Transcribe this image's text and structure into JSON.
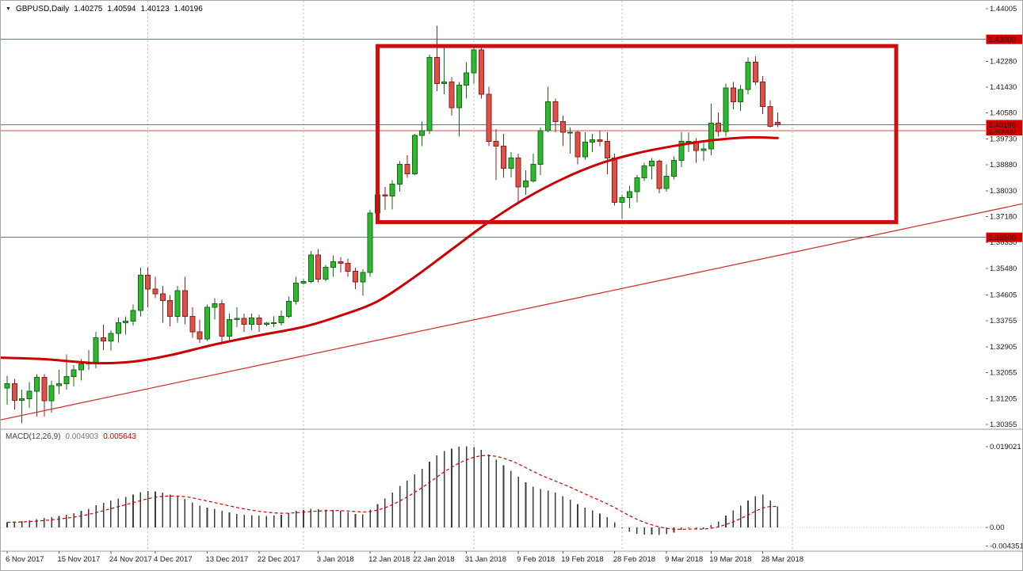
{
  "header": {
    "symbol": "GBPUSD,Daily",
    "open": "1.40275",
    "high": "1.40594",
    "low": "1.40123",
    "close": "1.40196"
  },
  "macd_panel": {
    "label": "MACD(12,26,9)",
    "main_value": "0.004903",
    "signal_value": "0.005643"
  },
  "colors": {
    "bull_fill": "#2eb82e",
    "bull_border": "#156915",
    "bear_fill": "#dd5246",
    "bear_border": "#8f1f1f",
    "level_line_red": "#e04848",
    "object_red": "#cc0f0f",
    "ma_red": "#cc0000",
    "badge_red": "#d40000",
    "histogram": "#3d3d3d",
    "grid_gray": "#b5b5b5",
    "separator_gray": "#9a9a9a"
  },
  "chart_data": {
    "type": "candlestick",
    "symbol": "GBPUSD",
    "timeframe": "Daily",
    "price_axis": {
      "labels": [
        "1.44005",
        "1.42280",
        "1.41430",
        "1.40580",
        "1.39730",
        "1.38880",
        "1.38030",
        "1.37180",
        "1.36330",
        "1.35480",
        "1.34605",
        "1.33755",
        "1.32905",
        "1.32055",
        "1.31205",
        "1.30355"
      ],
      "ylim": [
        1.30355,
        1.44005
      ]
    },
    "time_axis": [
      {
        "i": 0,
        "label": "6 Nov 2017"
      },
      {
        "i": 7,
        "label": "15 Nov 2017"
      },
      {
        "i": 14,
        "label": "24 Nov 2017"
      },
      {
        "i": 20,
        "label": "4 Dec 2017"
      },
      {
        "i": 27,
        "label": "13 Dec 2017"
      },
      {
        "i": 34,
        "label": "22 Dec 2017"
      },
      {
        "i": 42,
        "label": "3 Jan 2018"
      },
      {
        "i": 49,
        "label": "12 Jan 2018"
      },
      {
        "i": 55,
        "label": "22 Jan 2018"
      },
      {
        "i": 62,
        "label": "31 Jan 2018"
      },
      {
        "i": 69,
        "label": "9 Feb 2018"
      },
      {
        "i": 75,
        "label": "19 Feb 2018"
      },
      {
        "i": 82,
        "label": "28 Feb 2018"
      },
      {
        "i": 89,
        "label": "9 Mar 2018"
      },
      {
        "i": 95,
        "label": "19 Mar 2018"
      },
      {
        "i": 102,
        "label": "28 Mar 2018"
      }
    ],
    "month_separator_indices": [
      19,
      40,
      63,
      83,
      106
    ],
    "hlines": [
      {
        "price": 1.43,
        "label": "1.43000"
      },
      {
        "price": 1.4,
        "label": "1.40000"
      },
      {
        "price": 1.365,
        "label": "1.36500"
      }
    ],
    "current_price": {
      "price": 1.40196,
      "label": "1.40196"
    },
    "trendline": {
      "i1": -1,
      "p1": 1.305,
      "i2": 138,
      "p2": 1.3765
    },
    "rectangle": {
      "i1": 50,
      "p1": 1.4278,
      "i2": 120,
      "p2": 1.37
    },
    "ma_points": [
      [
        -1,
        1.3255
      ],
      [
        5,
        1.325
      ],
      [
        12,
        1.3237
      ],
      [
        17,
        1.3242
      ],
      [
        22,
        1.3263
      ],
      [
        28,
        1.3298
      ],
      [
        34,
        1.3328
      ],
      [
        40,
        1.3356
      ],
      [
        45,
        1.3393
      ],
      [
        50,
        1.344
      ],
      [
        55,
        1.352
      ],
      [
        60,
        1.361
      ],
      [
        65,
        1.37
      ],
      [
        70,
        1.3778
      ],
      [
        75,
        1.3842
      ],
      [
        80,
        1.3892
      ],
      [
        85,
        1.3926
      ],
      [
        90,
        1.395
      ],
      [
        95,
        1.3968
      ],
      [
        100,
        1.3978
      ],
      [
        104,
        1.3976
      ]
    ],
    "candles": [
      [
        1.3155,
        1.3195,
        1.31,
        1.317
      ],
      [
        1.317,
        1.3185,
        1.3085,
        1.3115
      ],
      [
        1.3115,
        1.315,
        1.304,
        1.312
      ],
      [
        1.312,
        1.3175,
        1.309,
        1.3145
      ],
      [
        1.3145,
        1.32,
        1.3062,
        1.319
      ],
      [
        1.319,
        1.32,
        1.3062,
        1.3113
      ],
      [
        1.3113,
        1.318,
        1.3075,
        1.3163
      ],
      [
        1.3163,
        1.3215,
        1.3135,
        1.317
      ],
      [
        1.317,
        1.3265,
        1.315,
        1.3193
      ],
      [
        1.3193,
        1.323,
        1.316,
        1.3215
      ],
      [
        1.3215,
        1.325,
        1.318,
        1.3235
      ],
      [
        1.3235,
        1.328,
        1.3215,
        1.324
      ],
      [
        1.324,
        1.334,
        1.322,
        1.332
      ],
      [
        1.332,
        1.3363,
        1.328,
        1.331
      ],
      [
        1.331,
        1.3345,
        1.3278,
        1.3335
      ],
      [
        1.3335,
        1.3387,
        1.3305,
        1.337
      ],
      [
        1.337,
        1.339,
        1.333,
        1.3375
      ],
      [
        1.3375,
        1.343,
        1.336,
        1.341
      ],
      [
        1.341,
        1.355,
        1.339,
        1.3525
      ],
      [
        1.3525,
        1.355,
        1.342,
        1.348
      ],
      [
        1.348,
        1.352,
        1.345,
        1.3465
      ],
      [
        1.3465,
        1.349,
        1.337,
        1.3442
      ],
      [
        1.3442,
        1.346,
        1.3358,
        1.339
      ],
      [
        1.339,
        1.349,
        1.337,
        1.3475
      ],
      [
        1.3475,
        1.352,
        1.3365,
        1.339
      ],
      [
        1.339,
        1.342,
        1.332,
        1.334
      ],
      [
        1.334,
        1.338,
        1.3303,
        1.3316
      ],
      [
        1.3316,
        1.343,
        1.331,
        1.342
      ],
      [
        1.342,
        1.345,
        1.338,
        1.3432
      ],
      [
        1.3432,
        1.3445,
        1.3305,
        1.3325
      ],
      [
        1.3325,
        1.34,
        1.331,
        1.338
      ],
      [
        1.338,
        1.342,
        1.3355,
        1.3384
      ],
      [
        1.3384,
        1.34,
        1.334,
        1.3365
      ],
      [
        1.3365,
        1.34,
        1.3345,
        1.3385
      ],
      [
        1.3385,
        1.3395,
        1.334,
        1.3365
      ],
      [
        1.3365,
        1.3372,
        1.3358,
        1.3368
      ],
      [
        1.3368,
        1.339,
        1.3355,
        1.337
      ],
      [
        1.337,
        1.341,
        1.336,
        1.339
      ],
      [
        1.339,
        1.3455,
        1.3385,
        1.344
      ],
      [
        1.344,
        1.352,
        1.343,
        1.35
      ],
      [
        1.35,
        1.3512,
        1.3494,
        1.3505
      ],
      [
        1.3505,
        1.3605,
        1.35,
        1.3592
      ],
      [
        1.3592,
        1.3612,
        1.3502,
        1.3513
      ],
      [
        1.3513,
        1.356,
        1.3505,
        1.3552
      ],
      [
        1.3552,
        1.359,
        1.352,
        1.357
      ],
      [
        1.357,
        1.3585,
        1.3535,
        1.3565
      ],
      [
        1.3565,
        1.358,
        1.352,
        1.3538
      ],
      [
        1.3538,
        1.355,
        1.348,
        1.3503
      ],
      [
        1.3503,
        1.3545,
        1.3458,
        1.3535
      ],
      [
        1.3535,
        1.374,
        1.352,
        1.373
      ],
      [
        1.373,
        1.382,
        1.37,
        1.379
      ],
      [
        1.379,
        1.3815,
        1.374,
        1.3785
      ],
      [
        1.3785,
        1.3837,
        1.3742,
        1.3825
      ],
      [
        1.3825,
        1.39,
        1.38,
        1.389
      ],
      [
        1.389,
        1.392,
        1.3845,
        1.3858
      ],
      [
        1.3858,
        1.399,
        1.3855,
        1.3985
      ],
      [
        1.3985,
        1.403,
        1.395,
        1.4
      ],
      [
        1.4,
        1.425,
        1.399,
        1.424
      ],
      [
        1.424,
        1.4345,
        1.413,
        1.4155
      ],
      [
        1.4155,
        1.428,
        1.412,
        1.416
      ],
      [
        1.416,
        1.4175,
        1.405,
        1.4075
      ],
      [
        1.4075,
        1.416,
        1.398,
        1.415
      ],
      [
        1.415,
        1.4225,
        1.4105,
        1.419
      ],
      [
        1.419,
        1.428,
        1.4155,
        1.4265
      ],
      [
        1.4265,
        1.428,
        1.4105,
        1.412
      ],
      [
        1.412,
        1.4145,
        1.395,
        1.3965
      ],
      [
        1.3965,
        1.4005,
        1.3838,
        1.395
      ],
      [
        1.395,
        1.399,
        1.3845,
        1.3876
      ],
      [
        1.3876,
        1.393,
        1.3847,
        1.391
      ],
      [
        1.391,
        1.3925,
        1.3765,
        1.3815
      ],
      [
        1.3815,
        1.387,
        1.379,
        1.3835
      ],
      [
        1.3835,
        1.3925,
        1.383,
        1.389
      ],
      [
        1.389,
        1.401,
        1.3855,
        1.4
      ],
      [
        1.4,
        1.4145,
        1.3995,
        1.4095
      ],
      [
        1.4095,
        1.4105,
        1.3995,
        1.403
      ],
      [
        1.403,
        1.405,
        1.395,
        1.3995
      ],
      [
        1.3995,
        1.401,
        1.3925,
        1.3995
      ],
      [
        1.3995,
        1.4,
        1.389,
        1.3914
      ],
      [
        1.3914,
        1.3995,
        1.3905,
        1.3962
      ],
      [
        1.3962,
        1.399,
        1.393,
        1.397
      ],
      [
        1.397,
        1.4,
        1.395,
        1.3965
      ],
      [
        1.3965,
        1.3995,
        1.3857,
        1.391
      ],
      [
        1.391,
        1.3925,
        1.3755,
        1.3765
      ],
      [
        1.3765,
        1.379,
        1.3712,
        1.378
      ],
      [
        1.378,
        1.382,
        1.3745,
        1.38
      ],
      [
        1.38,
        1.3855,
        1.3765,
        1.3845
      ],
      [
        1.3845,
        1.3895,
        1.3835,
        1.3885
      ],
      [
        1.3885,
        1.391,
        1.384,
        1.39
      ],
      [
        1.39,
        1.3905,
        1.3795,
        1.381
      ],
      [
        1.381,
        1.389,
        1.38,
        1.385
      ],
      [
        1.385,
        1.3915,
        1.384,
        1.3903
      ],
      [
        1.3903,
        1.3996,
        1.388,
        1.3965
      ],
      [
        1.3965,
        1.3995,
        1.393,
        1.3965
      ],
      [
        1.3965,
        1.3975,
        1.3895,
        1.3935
      ],
      [
        1.3935,
        1.396,
        1.39,
        1.394
      ],
      [
        1.394,
        1.4088,
        1.392,
        1.4025
      ],
      [
        1.4025,
        1.406,
        1.398,
        1.3998
      ],
      [
        1.3998,
        1.4155,
        1.398,
        1.414
      ],
      [
        1.414,
        1.416,
        1.407,
        1.4095
      ],
      [
        1.4095,
        1.415,
        1.4065,
        1.4135
      ],
      [
        1.4135,
        1.424,
        1.412,
        1.4225
      ],
      [
        1.4225,
        1.4244,
        1.415,
        1.416
      ],
      [
        1.416,
        1.418,
        1.4055,
        1.408
      ],
      [
        1.408,
        1.41,
        1.401,
        1.4015
      ],
      [
        1.40275,
        1.40594,
        1.40123,
        1.40196
      ]
    ],
    "macd": {
      "type": "bar",
      "signal_period": 9,
      "values": [
        0.0012,
        0.0014,
        0.0015,
        0.0017,
        0.002,
        0.0022,
        0.0024,
        0.0027,
        0.003,
        0.0034,
        0.0039,
        0.0044,
        0.0052,
        0.0058,
        0.0063,
        0.0068,
        0.0072,
        0.0077,
        0.0083,
        0.0086,
        0.0085,
        0.0082,
        0.0077,
        0.0073,
        0.0067,
        0.0059,
        0.0051,
        0.0047,
        0.0044,
        0.0039,
        0.0035,
        0.0032,
        0.003,
        0.0029,
        0.0028,
        0.0027,
        0.0028,
        0.003,
        0.0034,
        0.0039,
        0.0041,
        0.0044,
        0.0043,
        0.0042,
        0.0041,
        0.0039,
        0.0036,
        0.0032,
        0.0031,
        0.0042,
        0.0055,
        0.0068,
        0.0082,
        0.0098,
        0.011,
        0.0125,
        0.0138,
        0.0155,
        0.017,
        0.018,
        0.0186,
        0.019,
        0.0191,
        0.0189,
        0.0183,
        0.0172,
        0.0159,
        0.0146,
        0.0133,
        0.0119,
        0.0106,
        0.0096,
        0.009,
        0.0087,
        0.0082,
        0.0074,
        0.0065,
        0.0055,
        0.0047,
        0.004,
        0.0033,
        0.0024,
        0.0012,
        -0.0002,
        -0.001,
        -0.0015,
        -0.0017,
        -0.0017,
        -0.0018,
        -0.0016,
        -0.0012,
        -0.0006,
        -0.0002,
        -0.0003,
        -0.0004,
        0.0006,
        0.0014,
        0.0028,
        0.004,
        0.0051,
        0.0063,
        0.0074,
        0.0077,
        0.0063,
        0.0049
      ],
      "axis": [
        {
          "v": 0.019021,
          "label": "0.019021"
        },
        {
          "v": 0,
          "label": "0.00"
        },
        {
          "v": -0.004351,
          "label": "-0.004351"
        }
      ]
    }
  }
}
